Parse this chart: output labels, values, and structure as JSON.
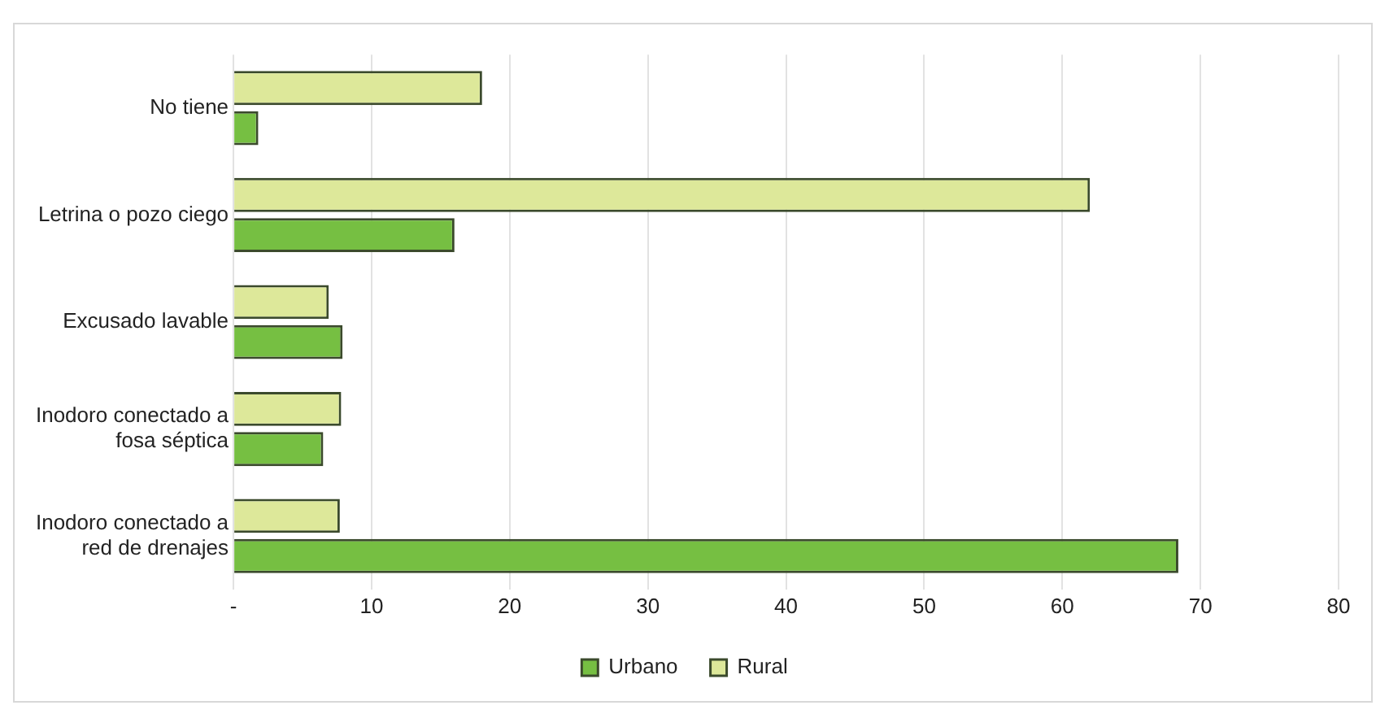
{
  "chart_data": {
    "type": "bar",
    "orientation": "horizontal",
    "categories": [
      "No tiene",
      "Letrina o pozo ciego",
      "Excusado lavable",
      "Inodoro conectado a fosa séptica",
      "Inodoro conectado a red de drenajes"
    ],
    "series": [
      {
        "name": "Urbano",
        "color": "#76bf42",
        "values": [
          1.8,
          16,
          7.9,
          6.5,
          68.4
        ]
      },
      {
        "name": "Rural",
        "color": "#dde89a",
        "values": [
          18,
          62,
          6.9,
          7.8,
          7.7
        ]
      }
    ],
    "xlim": [
      0,
      80
    ],
    "xticks": [
      {
        "value": 0,
        "label": "-"
      },
      10,
      20,
      30,
      40,
      50,
      60,
      70,
      80
    ],
    "grid": "x",
    "legend": "bottom"
  }
}
